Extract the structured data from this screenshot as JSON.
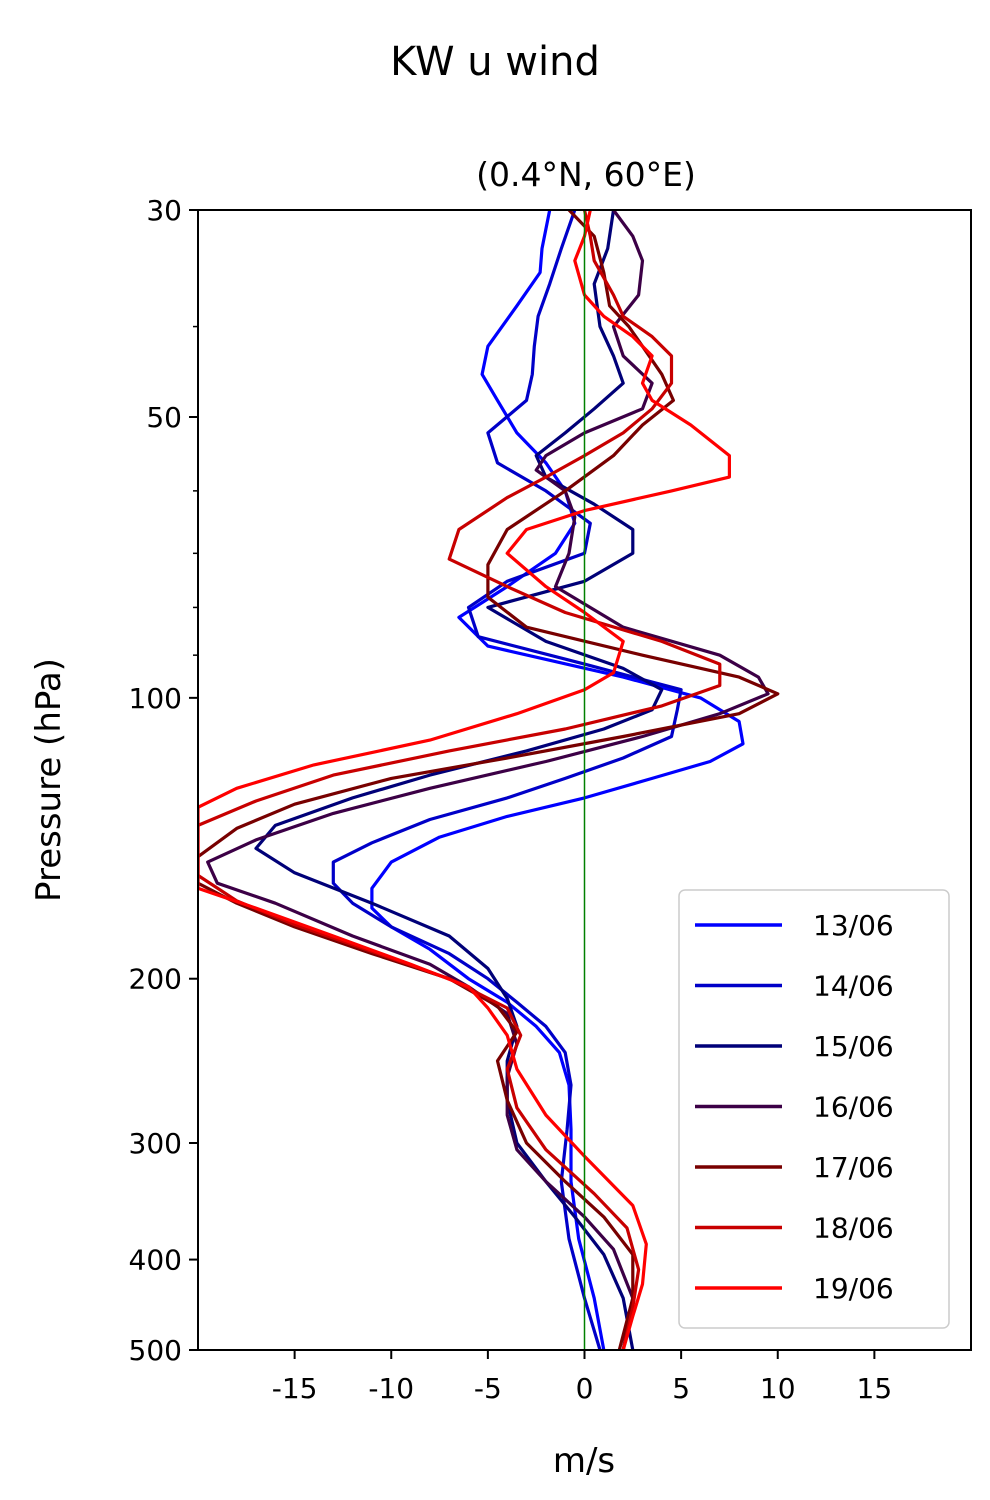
{
  "chart_data": {
    "type": "line",
    "title": "KW u wind",
    "subtitle": "(0.4°N, 60°E)",
    "xlabel": "m/s",
    "ylabel": "Pressure (hPa)",
    "xlim": [
      -20,
      20
    ],
    "ylim": [
      500,
      30
    ],
    "yscale": "log",
    "xticks": [
      -15,
      -10,
      -5,
      0,
      5,
      10,
      15
    ],
    "xtick_labels": [
      "-15",
      "-10",
      "-5",
      "0",
      "5",
      "10",
      "15"
    ],
    "yticks": [
      30,
      50,
      100,
      200,
      300,
      400,
      500
    ],
    "ytick_labels": [
      "30",
      "50",
      "100",
      "200",
      "300",
      "400",
      "500"
    ],
    "yminor": [
      40,
      60,
      70,
      80,
      90
    ],
    "zero_line": {
      "x": 0,
      "color": "#008000"
    },
    "grid": false,
    "legend_position": "lower right",
    "series": [
      {
        "name": "13/06",
        "color": "#0000ff",
        "points": [
          [
            -1.8,
            30
          ],
          [
            -2.2,
            33
          ],
          [
            -2.3,
            35
          ],
          [
            -3.5,
            38
          ],
          [
            -5,
            42
          ],
          [
            -5.3,
            45
          ],
          [
            -4.5,
            48
          ],
          [
            -3.5,
            52
          ],
          [
            -2,
            56
          ],
          [
            -1,
            60
          ],
          [
            -0.5,
            65
          ],
          [
            -1.5,
            70
          ],
          [
            -4,
            76
          ],
          [
            -6.5,
            82
          ],
          [
            -5,
            88
          ],
          [
            2,
            95
          ],
          [
            6,
            100
          ],
          [
            8,
            106
          ],
          [
            8.2,
            112
          ],
          [
            6.5,
            117
          ],
          [
            3.5,
            122
          ],
          [
            0,
            128
          ],
          [
            -4,
            134
          ],
          [
            -7.5,
            141
          ],
          [
            -10,
            150
          ],
          [
            -11,
            160
          ],
          [
            -11,
            168
          ],
          [
            -10,
            176
          ],
          [
            -8,
            186
          ],
          [
            -6,
            200
          ],
          [
            -4,
            212
          ],
          [
            -2.5,
            225
          ],
          [
            -1.3,
            240
          ],
          [
            -0.8,
            260
          ],
          [
            -0.7,
            290
          ],
          [
            -0.7,
            330
          ],
          [
            -0.3,
            380
          ],
          [
            0.5,
            440
          ],
          [
            1,
            500
          ]
        ]
      },
      {
        "name": "14/06",
        "color": "#0000c8",
        "points": [
          [
            -0.5,
            30
          ],
          [
            -1.2,
            33
          ],
          [
            -1.8,
            36
          ],
          [
            -2.4,
            39
          ],
          [
            -2.6,
            42
          ],
          [
            -2.7,
            45
          ],
          [
            -3,
            48
          ],
          [
            -5,
            52
          ],
          [
            -4.5,
            56
          ],
          [
            -2,
            60
          ],
          [
            0.3,
            65
          ],
          [
            0,
            70
          ],
          [
            -4,
            75
          ],
          [
            -6,
            80
          ],
          [
            -5.5,
            86
          ],
          [
            0,
            92
          ],
          [
            5,
            98
          ],
          [
            4.8,
            103
          ],
          [
            4.5,
            110
          ],
          [
            2,
            116
          ],
          [
            -1,
            122
          ],
          [
            -4,
            128
          ],
          [
            -8,
            135
          ],
          [
            -11,
            143
          ],
          [
            -13,
            150
          ],
          [
            -13,
            158
          ],
          [
            -12,
            166
          ],
          [
            -10,
            176
          ],
          [
            -7,
            188
          ],
          [
            -5,
            200
          ],
          [
            -3.5,
            212
          ],
          [
            -2,
            225
          ],
          [
            -1,
            240
          ],
          [
            -0.7,
            260
          ],
          [
            -0.9,
            290
          ],
          [
            -1.2,
            330
          ],
          [
            -0.8,
            380
          ],
          [
            0,
            440
          ],
          [
            0.8,
            500
          ]
        ]
      },
      {
        "name": "15/06",
        "color": "#000078",
        "points": [
          [
            1.5,
            30
          ],
          [
            1.2,
            33
          ],
          [
            0.5,
            36
          ],
          [
            0.8,
            40
          ],
          [
            1.5,
            43
          ],
          [
            2,
            46
          ],
          [
            0.5,
            49
          ],
          [
            -1,
            52
          ],
          [
            -2.5,
            55
          ],
          [
            -2,
            58
          ],
          [
            0.5,
            62
          ],
          [
            2.5,
            66
          ],
          [
            2.5,
            70
          ],
          [
            0,
            75
          ],
          [
            -5,
            80
          ],
          [
            -2,
            87
          ],
          [
            2,
            93
          ],
          [
            4,
            98
          ],
          [
            3.5,
            103
          ],
          [
            1,
            108
          ],
          [
            -3,
            114
          ],
          [
            -8,
            121
          ],
          [
            -12,
            128
          ],
          [
            -16,
            137
          ],
          [
            -17,
            145
          ],
          [
            -15,
            154
          ],
          [
            -11,
            166
          ],
          [
            -7,
            180
          ],
          [
            -5,
            195
          ],
          [
            -4,
            210
          ],
          [
            -3.5,
            225
          ],
          [
            -4,
            245
          ],
          [
            -4,
            270
          ],
          [
            -3.5,
            300
          ],
          [
            -2,
            330
          ],
          [
            -0.5,
            360
          ],
          [
            1,
            395
          ],
          [
            2,
            440
          ],
          [
            2.5,
            500
          ]
        ]
      },
      {
        "name": "16/06",
        "color": "#3c0046",
        "points": [
          [
            1.5,
            30
          ],
          [
            2.5,
            32
          ],
          [
            3,
            34
          ],
          [
            2.8,
            37
          ],
          [
            1.5,
            40
          ],
          [
            2,
            43
          ],
          [
            3.5,
            46
          ],
          [
            3,
            49
          ],
          [
            0,
            52
          ],
          [
            -2,
            55
          ],
          [
            -2.5,
            57
          ],
          [
            -1,
            60
          ],
          [
            -0.5,
            64
          ],
          [
            -0.8,
            70
          ],
          [
            -1.5,
            76
          ],
          [
            2,
            84
          ],
          [
            7,
            90
          ],
          [
            9,
            95
          ],
          [
            9.5,
            99
          ],
          [
            7,
            104
          ],
          [
            3,
            110
          ],
          [
            -2,
            117
          ],
          [
            -8,
            125
          ],
          [
            -13,
            133
          ],
          [
            -17,
            142
          ],
          [
            -19.5,
            150
          ],
          [
            -19,
            158
          ],
          [
            -16,
            166
          ],
          [
            -12,
            180
          ],
          [
            -8,
            193
          ],
          [
            -6,
            204
          ],
          [
            -4,
            218
          ],
          [
            -3.5,
            235
          ],
          [
            -4,
            255
          ],
          [
            -4,
            280
          ],
          [
            -3.5,
            305
          ],
          [
            -2,
            330
          ],
          [
            0,
            360
          ],
          [
            1.5,
            390
          ],
          [
            2.5,
            440
          ],
          [
            2,
            500
          ]
        ]
      },
      {
        "name": "17/06",
        "color": "#780000",
        "points": [
          [
            -0.8,
            30
          ],
          [
            0.5,
            32
          ],
          [
            1,
            35
          ],
          [
            1.3,
            38
          ],
          [
            2.3,
            40
          ],
          [
            3,
            42
          ],
          [
            4,
            45
          ],
          [
            4.6,
            48
          ],
          [
            3,
            51
          ],
          [
            1.5,
            55
          ],
          [
            -1,
            60
          ],
          [
            -4,
            66
          ],
          [
            -5,
            72
          ],
          [
            -5,
            78
          ],
          [
            -3,
            84
          ],
          [
            3,
            90
          ],
          [
            8,
            95
          ],
          [
            10,
            99
          ],
          [
            8,
            104
          ],
          [
            2,
            110
          ],
          [
            -4,
            116
          ],
          [
            -10,
            122
          ],
          [
            -15,
            130
          ],
          [
            -18,
            138
          ],
          [
            -20,
            148
          ],
          [
            -20,
            158
          ],
          [
            -18,
            166
          ],
          [
            -15,
            176
          ],
          [
            -11,
            188
          ],
          [
            -7,
            200
          ],
          [
            -4.5,
            214
          ],
          [
            -3.5,
            228
          ],
          [
            -4.5,
            245
          ],
          [
            -4,
            270
          ],
          [
            -3,
            300
          ],
          [
            -1,
            330
          ],
          [
            1,
            360
          ],
          [
            2.5,
            395
          ],
          [
            2.5,
            440
          ],
          [
            1.8,
            500
          ]
        ]
      },
      {
        "name": "18/06",
        "color": "#c80000",
        "points": [
          [
            0,
            30
          ],
          [
            0.3,
            32
          ],
          [
            0.5,
            34
          ],
          [
            1.5,
            37
          ],
          [
            2,
            39
          ],
          [
            3.5,
            41
          ],
          [
            4.5,
            43
          ],
          [
            4.5,
            46
          ],
          [
            3.5,
            49
          ],
          [
            2,
            52
          ],
          [
            0,
            55
          ],
          [
            -2,
            58
          ],
          [
            -4,
            61
          ],
          [
            -6.5,
            66
          ],
          [
            -7,
            71
          ],
          [
            -4,
            76
          ],
          [
            -1,
            81
          ],
          [
            4,
            87
          ],
          [
            7,
            92
          ],
          [
            7,
            97
          ],
          [
            4,
            102
          ],
          [
            -1,
            108
          ],
          [
            -7,
            114
          ],
          [
            -13,
            121
          ],
          [
            -17,
            129
          ],
          [
            -20,
            137
          ],
          [
            -20,
            146
          ],
          [
            -20,
            155
          ],
          [
            -18,
            165
          ],
          [
            -15,
            175
          ],
          [
            -11,
            187
          ],
          [
            -7,
            200
          ],
          [
            -4,
            215
          ],
          [
            -3.3,
            230
          ],
          [
            -4,
            250
          ],
          [
            -3.5,
            275
          ],
          [
            -2,
            305
          ],
          [
            0.5,
            340
          ],
          [
            2.2,
            370
          ],
          [
            2.8,
            410
          ],
          [
            2.5,
            450
          ],
          [
            2,
            500
          ]
        ]
      },
      {
        "name": "19/06",
        "color": "#ff0000",
        "points": [
          [
            0.3,
            30
          ],
          [
            0,
            32
          ],
          [
            -0.5,
            34
          ],
          [
            0,
            37
          ],
          [
            1,
            39
          ],
          [
            2.5,
            41
          ],
          [
            3.5,
            43
          ],
          [
            3,
            46
          ],
          [
            3.5,
            48
          ],
          [
            5.5,
            51
          ],
          [
            7.5,
            55
          ],
          [
            7.5,
            58
          ],
          [
            4.5,
            60
          ],
          [
            0,
            63
          ],
          [
            -3,
            66
          ],
          [
            -4,
            70
          ],
          [
            -2,
            76
          ],
          [
            0,
            81
          ],
          [
            2,
            87
          ],
          [
            1.5,
            94
          ],
          [
            0,
            98
          ],
          [
            -3.5,
            104
          ],
          [
            -8,
            111
          ],
          [
            -14,
            118
          ],
          [
            -18,
            125
          ],
          [
            -20,
            131
          ],
          [
            -20,
            140
          ],
          [
            -20,
            152
          ],
          [
            -20,
            160
          ],
          [
            -17,
            168
          ],
          [
            -13,
            180
          ],
          [
            -9,
            193
          ],
          [
            -6,
            204
          ],
          [
            -5,
            215
          ],
          [
            -4,
            230
          ],
          [
            -3.5,
            250
          ],
          [
            -2,
            280
          ],
          [
            0,
            310
          ],
          [
            2.5,
            350
          ],
          [
            3.2,
            385
          ],
          [
            3,
            425
          ],
          [
            2.5,
            460
          ],
          [
            2,
            500
          ]
        ]
      }
    ]
  }
}
